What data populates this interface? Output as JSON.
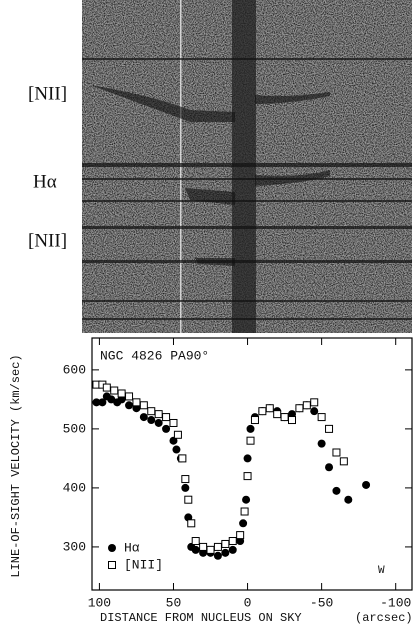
{
  "spectrum": {
    "labels": [
      "[NII]",
      "Hα",
      "[NII]"
    ]
  },
  "chart_data": {
    "type": "scatter",
    "annotations": [
      "NGC 4826 PA90°",
      "W"
    ],
    "x_label": "DISTANCE FROM NUCLEUS ON SKY",
    "x_unit": "(arcsec)",
    "y_label": "LINE-OF-SIGHT VELOCITY  (km/sec)",
    "xlim": [
      105,
      -111
    ],
    "ylim": [
      227,
      654
    ],
    "xticks": [
      100,
      50,
      0,
      -50,
      -100
    ],
    "yticks": [
      300,
      400,
      500,
      600
    ],
    "legend": "lower left",
    "series": [
      {
        "name": "Hα",
        "color": "#000000",
        "marker": "circle",
        "x": [
          102,
          98,
          95,
          92,
          88,
          85,
          80,
          75,
          70,
          65,
          60,
          55,
          50,
          48,
          45,
          42,
          40,
          38,
          35,
          30,
          25,
          20,
          15,
          10,
          5,
          3,
          1,
          0,
          -2,
          -5,
          -10,
          -15,
          -20,
          -25,
          -30,
          -35,
          -40,
          -45,
          -50,
          -55,
          -60,
          -68,
          -80
        ],
        "values": [
          545,
          545,
          555,
          550,
          545,
          550,
          540,
          535,
          520,
          515,
          510,
          500,
          480,
          465,
          450,
          400,
          350,
          300,
          295,
          290,
          290,
          285,
          290,
          295,
          310,
          340,
          380,
          450,
          500,
          520,
          530,
          535,
          530,
          520,
          525,
          535,
          540,
          530,
          475,
          435,
          395,
          380,
          405
        ]
      },
      {
        "name": "[NII]",
        "color": "#000000",
        "marker": "square",
        "x": [
          102,
          98,
          95,
          90,
          85,
          80,
          75,
          70,
          65,
          60,
          55,
          50,
          47,
          44,
          42,
          40,
          38,
          35,
          30,
          25,
          20,
          15,
          10,
          5,
          2,
          0,
          -2,
          -5,
          -10,
          -15,
          -20,
          -25,
          -30,
          -35,
          -40,
          -45,
          -50,
          -55,
          -60,
          -65
        ],
        "values": [
          575,
          575,
          570,
          565,
          560,
          555,
          545,
          540,
          530,
          525,
          520,
          510,
          490,
          450,
          415,
          380,
          340,
          310,
          300,
          295,
          300,
          305,
          310,
          320,
          360,
          420,
          480,
          515,
          530,
          535,
          525,
          520,
          515,
          535,
          540,
          545,
          520,
          500,
          460,
          445
        ]
      }
    ]
  }
}
